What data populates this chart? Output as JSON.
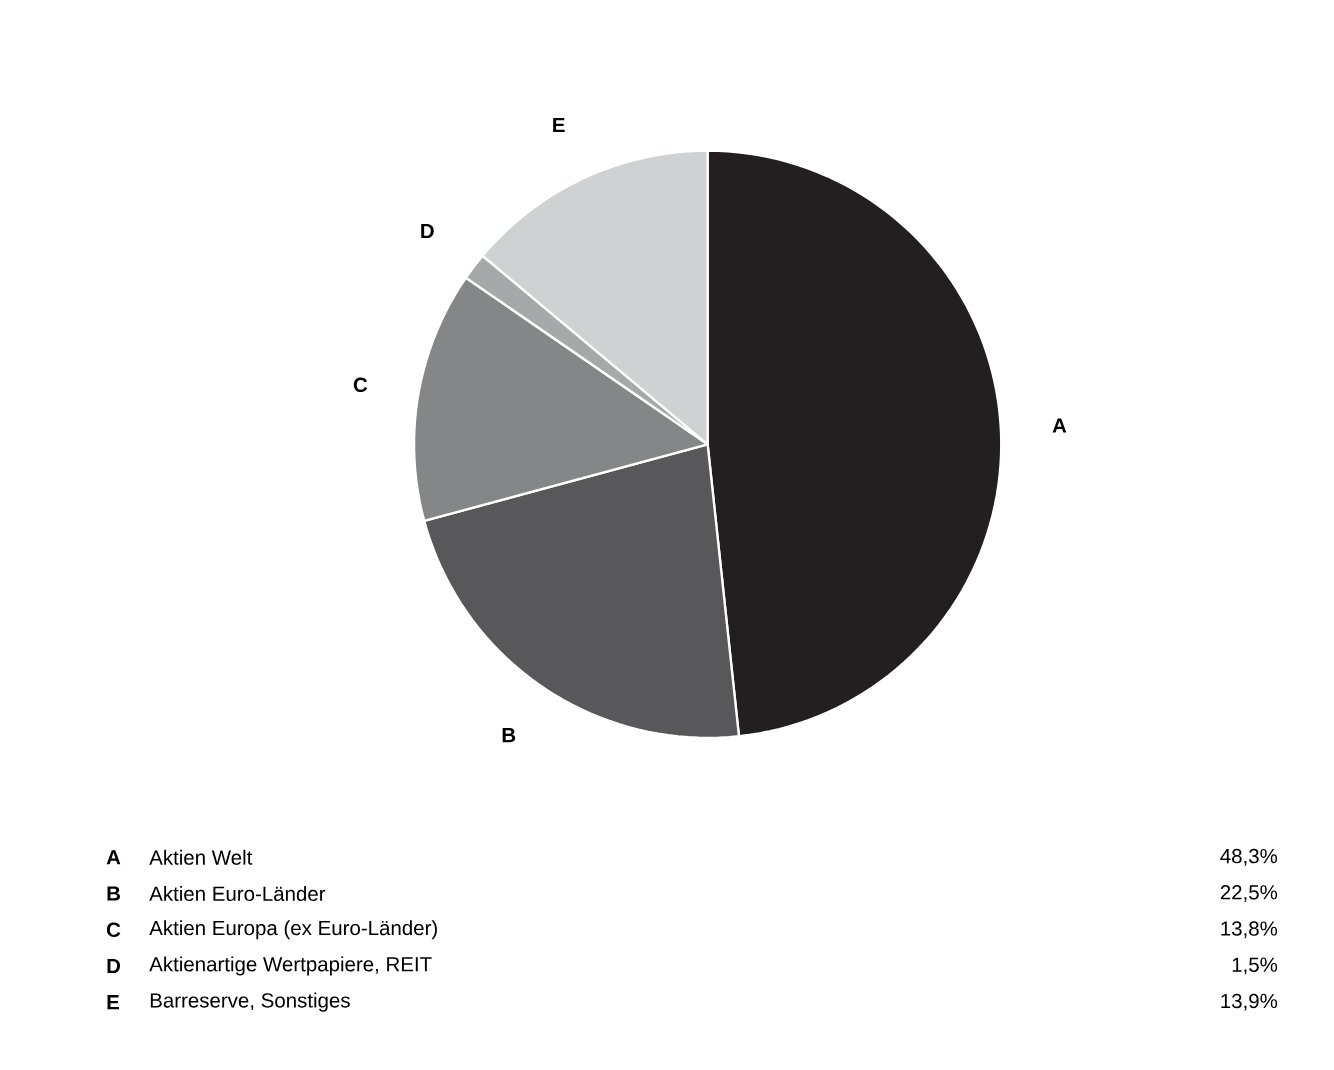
{
  "chart_data": {
    "type": "pie",
    "categories": [
      "A",
      "B",
      "C",
      "D",
      "E"
    ],
    "values": [
      48.3,
      22.5,
      13.8,
      1.5,
      13.9
    ],
    "colors": [
      "#231f20",
      "#58585a",
      "#858688",
      "#a7a8aa",
      "#d0d1d3"
    ],
    "annotations": [
      "Aktien Welt",
      "Aktien Euro-Länder",
      "Aktien Europa (ex Euro-Länder)",
      "Aktienartige Wertpapiere, REIT",
      "Barreserve, Sonstiges",
      "48,3%",
      "22,5%",
      "13,8%",
      "1,5%",
      "13,9%"
    ]
  }
}
